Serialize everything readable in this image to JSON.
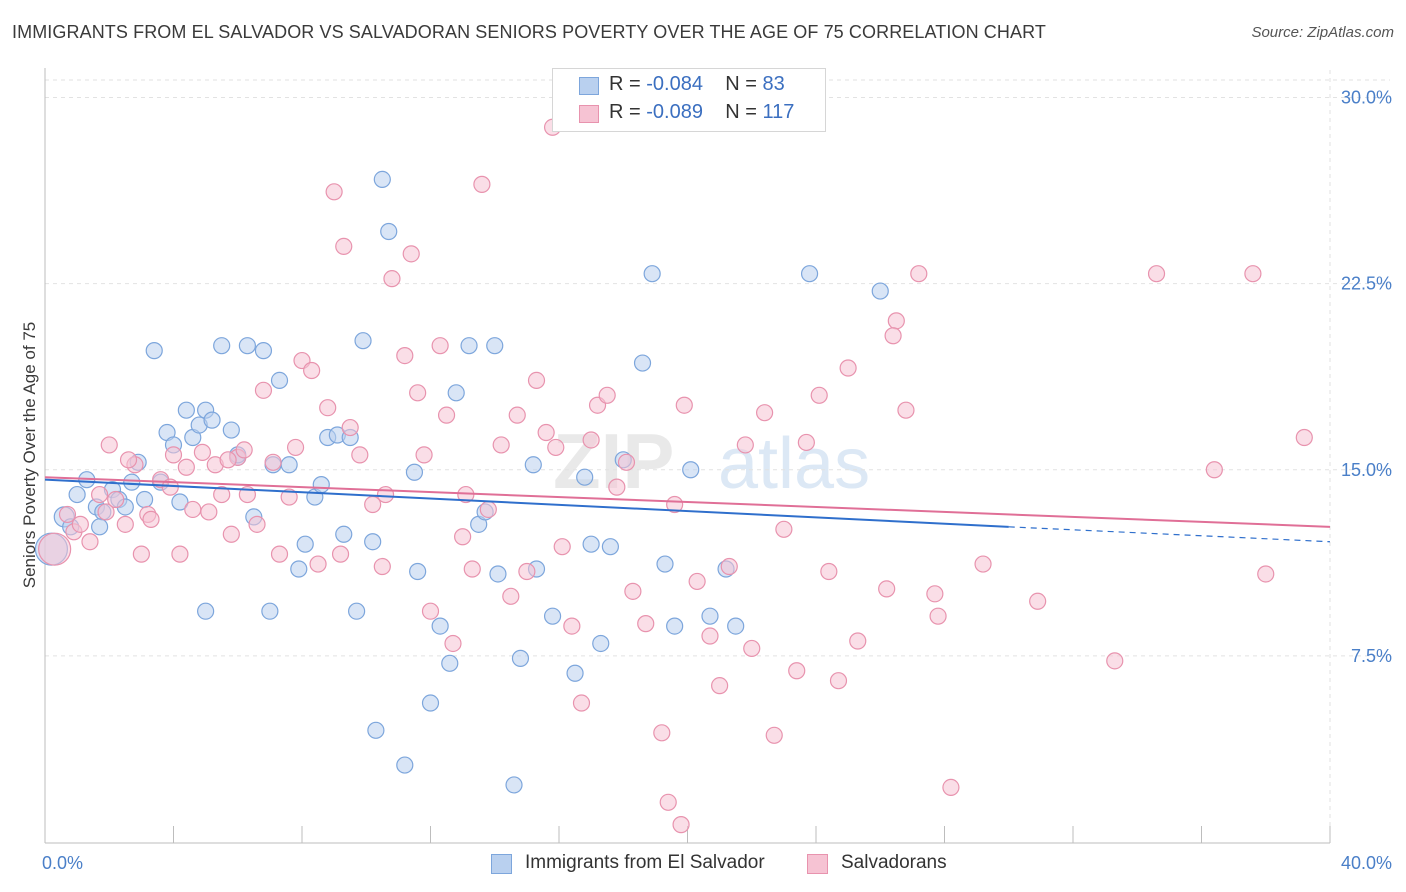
{
  "header": {
    "title": "IMMIGRANTS FROM EL SALVADOR VS SALVADORAN SENIORS POVERTY OVER THE AGE OF 75 CORRELATION CHART",
    "source": "Source: ZipAtlas.com"
  },
  "stats": {
    "rows": [
      {
        "r_label": "R =",
        "r_value": "-0.084",
        "n_label": "N =",
        "n_value": "83"
      },
      {
        "r_label": "R =",
        "r_value": "-0.089",
        "n_label": "N =",
        "n_value": "117"
      }
    ]
  },
  "legend": {
    "items": [
      {
        "label": "Immigrants from El Salvador"
      },
      {
        "label": "Salvadorans"
      }
    ]
  },
  "watermark": {
    "zip": "ZIP",
    "atlas": "atlas"
  },
  "colors": {
    "blue_fill": "#b9d0ef",
    "blue_stroke": "#7da6dc",
    "blue_line": "#2f6fcc",
    "pink_fill": "#f6c3d3",
    "pink_stroke": "#e893ae",
    "pink_line": "#e06f97",
    "tick_text": "#4a7fc8",
    "grid": "#e2e2e2"
  },
  "chart_data": {
    "type": "scatter",
    "title": "IMMIGRANTS FROM EL SALVADOR VS SALVADORAN SENIORS POVERTY OVER THE AGE OF 75 CORRELATION CHART",
    "xlabel": "",
    "ylabel": "Seniors Poverty Over the Age of 75",
    "xlim": [
      0,
      40
    ],
    "ylim": [
      0,
      31
    ],
    "x_tick_labels": [
      {
        "value": 0,
        "label": "0.0%"
      },
      {
        "value": 40,
        "label": "40.0%"
      }
    ],
    "y_tick_labels": [
      {
        "value": 7.5,
        "label": "7.5%"
      },
      {
        "value": 15,
        "label": "15.0%"
      },
      {
        "value": 22.5,
        "label": "22.5%"
      },
      {
        "value": 30,
        "label": "30.0%"
      }
    ],
    "x_minor_ticks": [
      4,
      8,
      12,
      16,
      20,
      24,
      28,
      32,
      36,
      40
    ],
    "grid": true,
    "legend_position": "bottom-center",
    "series": [
      {
        "name": "Immigrants from El Salvador",
        "color": "#b9d0ef",
        "trend": {
          "x0": 0,
          "y0": 14.6,
          "x1": 30,
          "y1": 12.7,
          "dashed_to_x": 40,
          "dashed_to_y": 12.1
        },
        "points": [
          [
            0.2,
            11.8,
            16
          ],
          [
            0.6,
            13.1,
            10
          ],
          [
            0.8,
            12.7,
            8
          ],
          [
            1.0,
            14.0,
            8
          ],
          [
            1.3,
            14.6,
            8
          ],
          [
            1.6,
            13.5,
            8
          ],
          [
            1.8,
            13.3,
            8
          ],
          [
            2.1,
            14.2,
            8
          ],
          [
            2.3,
            13.8,
            8
          ],
          [
            2.5,
            13.5,
            8
          ],
          [
            2.7,
            14.5,
            8
          ],
          [
            2.9,
            15.3,
            8
          ],
          [
            3.1,
            13.8,
            8
          ],
          [
            3.4,
            19.8,
            8
          ],
          [
            3.6,
            14.5,
            8
          ],
          [
            3.8,
            16.5,
            8
          ],
          [
            4.0,
            16.0,
            8
          ],
          [
            4.2,
            13.7,
            8
          ],
          [
            4.4,
            17.4,
            8
          ],
          [
            4.6,
            16.3,
            8
          ],
          [
            4.8,
            16.8,
            8
          ],
          [
            5.0,
            17.4,
            8
          ],
          [
            5.2,
            17.0,
            8
          ],
          [
            5.5,
            20.0,
            8
          ],
          [
            5.8,
            16.6,
            8
          ],
          [
            6.0,
            15.5,
            8
          ],
          [
            6.3,
            20.0,
            8
          ],
          [
            6.5,
            13.1,
            8
          ],
          [
            6.8,
            19.8,
            8
          ],
          [
            7.1,
            15.2,
            8
          ],
          [
            7.3,
            18.6,
            8
          ],
          [
            7.6,
            15.2,
            8
          ],
          [
            7.9,
            11.0,
            8
          ],
          [
            8.1,
            12.0,
            8
          ],
          [
            8.4,
            13.9,
            8
          ],
          [
            8.6,
            14.4,
            8
          ],
          [
            8.8,
            16.3,
            8
          ],
          [
            9.1,
            16.4,
            8
          ],
          [
            9.3,
            12.4,
            8
          ],
          [
            9.5,
            16.3,
            8
          ],
          [
            9.9,
            20.2,
            8
          ],
          [
            10.2,
            12.1,
            8
          ],
          [
            10.5,
            26.7,
            8
          ],
          [
            10.7,
            24.6,
            8
          ],
          [
            11.2,
            3.1,
            8
          ],
          [
            11.5,
            14.9,
            8
          ],
          [
            11.6,
            10.9,
            8
          ],
          [
            12.0,
            5.6,
            8
          ],
          [
            12.3,
            8.7,
            8
          ],
          [
            12.6,
            7.2,
            8
          ],
          [
            12.8,
            18.1,
            8
          ],
          [
            13.2,
            20.0,
            8
          ],
          [
            13.5,
            12.8,
            8
          ],
          [
            13.7,
            13.3,
            8
          ],
          [
            14.0,
            20.0,
            8
          ],
          [
            14.1,
            10.8,
            8
          ],
          [
            14.6,
            2.3,
            8
          ],
          [
            14.8,
            7.4,
            8
          ],
          [
            15.2,
            15.2,
            8
          ],
          [
            15.3,
            11.0,
            8
          ],
          [
            15.8,
            9.1,
            8
          ],
          [
            16.5,
            6.8,
            8
          ],
          [
            17.0,
            12.0,
            8
          ],
          [
            17.3,
            8.0,
            8
          ],
          [
            17.6,
            11.9,
            8
          ],
          [
            16.8,
            14.7,
            8
          ],
          [
            18.0,
            15.4,
            8
          ],
          [
            18.6,
            19.3,
            8
          ],
          [
            18.9,
            22.9,
            8
          ],
          [
            19.3,
            11.2,
            8
          ],
          [
            19.6,
            8.7,
            8
          ],
          [
            20.1,
            15.0,
            8
          ],
          [
            20.7,
            9.1,
            8
          ],
          [
            21.2,
            11.0,
            8
          ],
          [
            21.5,
            8.7,
            8
          ],
          [
            23.8,
            22.9,
            8
          ],
          [
            26.0,
            22.2,
            8
          ],
          [
            5.0,
            9.3,
            8
          ],
          [
            7.0,
            9.3,
            8
          ],
          [
            9.7,
            9.3,
            8
          ],
          [
            10.3,
            4.5,
            8
          ],
          [
            1.7,
            12.7,
            8
          ],
          [
            6.0,
            15.6,
            8
          ]
        ]
      },
      {
        "name": "Salvadorans",
        "color": "#f6c3d3",
        "trend": {
          "x0": 0,
          "y0": 14.7,
          "x1": 40,
          "y1": 12.7
        },
        "points": [
          [
            0.3,
            11.8,
            16
          ],
          [
            0.7,
            13.2,
            8
          ],
          [
            0.9,
            12.5,
            8
          ],
          [
            1.1,
            12.8,
            8
          ],
          [
            1.4,
            12.1,
            8
          ],
          [
            1.7,
            14.0,
            8
          ],
          [
            1.9,
            13.3,
            8
          ],
          [
            2.2,
            13.8,
            8
          ],
          [
            2.5,
            12.8,
            8
          ],
          [
            2.8,
            15.2,
            8
          ],
          [
            2.6,
            15.4,
            8
          ],
          [
            3.0,
            11.6,
            8
          ],
          [
            3.2,
            13.2,
            8
          ],
          [
            3.3,
            13.0,
            8
          ],
          [
            3.6,
            14.6,
            8
          ],
          [
            3.9,
            14.3,
            8
          ],
          [
            4.2,
            11.6,
            8
          ],
          [
            4.4,
            15.1,
            8
          ],
          [
            4.6,
            13.4,
            8
          ],
          [
            4.9,
            15.7,
            8
          ],
          [
            5.1,
            13.3,
            8
          ],
          [
            5.3,
            15.2,
            8
          ],
          [
            5.5,
            14.0,
            8
          ],
          [
            5.8,
            12.4,
            8
          ],
          [
            6.0,
            15.5,
            8
          ],
          [
            6.3,
            14.0,
            8
          ],
          [
            6.6,
            12.8,
            8
          ],
          [
            6.8,
            18.2,
            8
          ],
          [
            7.1,
            15.3,
            8
          ],
          [
            7.3,
            11.6,
            8
          ],
          [
            7.6,
            13.9,
            8
          ],
          [
            7.8,
            15.9,
            8
          ],
          [
            8.0,
            19.4,
            8
          ],
          [
            8.3,
            19.0,
            8
          ],
          [
            8.5,
            11.2,
            8
          ],
          [
            8.8,
            17.5,
            8
          ],
          [
            9.0,
            26.2,
            8
          ],
          [
            9.3,
            24.0,
            8
          ],
          [
            9.5,
            16.7,
            8
          ],
          [
            9.8,
            15.6,
            8
          ],
          [
            10.2,
            13.6,
            8
          ],
          [
            10.5,
            11.1,
            8
          ],
          [
            10.6,
            14.0,
            8
          ],
          [
            10.8,
            22.7,
            8
          ],
          [
            11.2,
            19.6,
            8
          ],
          [
            11.4,
            23.7,
            8
          ],
          [
            11.6,
            18.1,
            8
          ],
          [
            11.8,
            15.6,
            8
          ],
          [
            12.0,
            9.3,
            8
          ],
          [
            12.3,
            20.0,
            8
          ],
          [
            12.5,
            17.2,
            8
          ],
          [
            12.7,
            8.0,
            8
          ],
          [
            13.0,
            12.3,
            8
          ],
          [
            13.3,
            11.0,
            8
          ],
          [
            13.6,
            26.5,
            8
          ],
          [
            13.8,
            13.4,
            8
          ],
          [
            14.2,
            16.0,
            8
          ],
          [
            14.5,
            9.9,
            8
          ],
          [
            14.7,
            17.2,
            8
          ],
          [
            15.0,
            10.9,
            8
          ],
          [
            15.3,
            18.6,
            8
          ],
          [
            15.6,
            16.5,
            8
          ],
          [
            15.9,
            15.9,
            8
          ],
          [
            16.1,
            11.9,
            8
          ],
          [
            16.4,
            8.7,
            8
          ],
          [
            16.7,
            5.6,
            8
          ],
          [
            17.2,
            17.6,
            8
          ],
          [
            17.5,
            18.0,
            8
          ],
          [
            17.8,
            14.3,
            8
          ],
          [
            18.1,
            15.3,
            8
          ],
          [
            18.3,
            10.1,
            8
          ],
          [
            18.7,
            8.8,
            8
          ],
          [
            19.2,
            4.4,
            8
          ],
          [
            19.4,
            1.6,
            8
          ],
          [
            19.6,
            13.6,
            8
          ],
          [
            19.9,
            17.6,
            8
          ],
          [
            20.3,
            10.5,
            8
          ],
          [
            20.7,
            8.3,
            8
          ],
          [
            21.0,
            6.3,
            8
          ],
          [
            21.3,
            11.1,
            8
          ],
          [
            21.8,
            16.0,
            8
          ],
          [
            22.0,
            7.8,
            8
          ],
          [
            22.4,
            17.3,
            8
          ],
          [
            22.7,
            4.3,
            8
          ],
          [
            23.0,
            12.6,
            8
          ],
          [
            23.4,
            6.9,
            8
          ],
          [
            23.7,
            16.1,
            8
          ],
          [
            24.1,
            18.0,
            8
          ],
          [
            24.4,
            10.9,
            8
          ],
          [
            24.7,
            6.5,
            8
          ],
          [
            25.0,
            19.1,
            8
          ],
          [
            25.3,
            8.1,
            8
          ],
          [
            26.2,
            10.2,
            8
          ],
          [
            26.5,
            21.0,
            8
          ],
          [
            26.8,
            17.4,
            8
          ],
          [
            27.2,
            22.9,
            8
          ],
          [
            27.7,
            10.0,
            8
          ],
          [
            27.8,
            9.1,
            8
          ],
          [
            28.2,
            2.2,
            8
          ],
          [
            29.2,
            11.2,
            8
          ],
          [
            30.9,
            9.7,
            8
          ],
          [
            33.3,
            7.3,
            8
          ],
          [
            34.6,
            22.9,
            8
          ],
          [
            36.4,
            15.0,
            8
          ],
          [
            37.6,
            22.9,
            8
          ],
          [
            38.0,
            10.8,
            8
          ],
          [
            39.2,
            16.3,
            8
          ],
          [
            15.8,
            28.8,
            8
          ],
          [
            9.2,
            11.6,
            8
          ],
          [
            4.0,
            15.6,
            8
          ],
          [
            2.0,
            16.0,
            8
          ],
          [
            6.2,
            15.8,
            8
          ],
          [
            13.1,
            14.0,
            8
          ],
          [
            17.0,
            16.2,
            8
          ],
          [
            19.8,
            0.7,
            8
          ],
          [
            26.4,
            20.4,
            8
          ],
          [
            5.7,
            15.4,
            8
          ]
        ]
      }
    ]
  }
}
